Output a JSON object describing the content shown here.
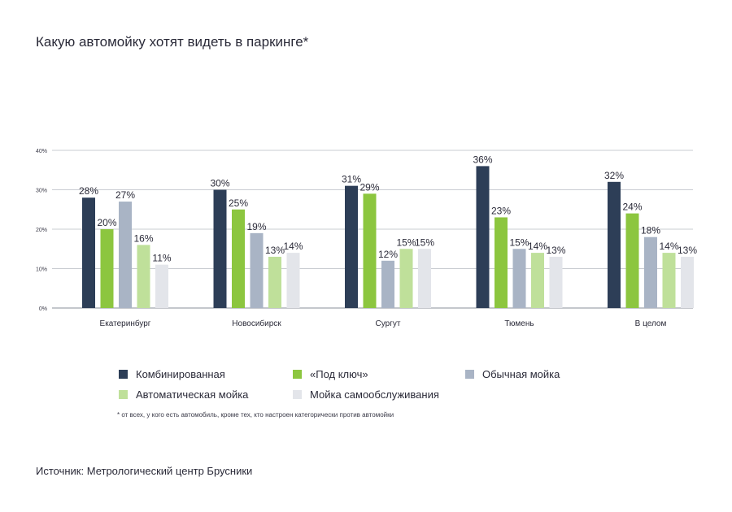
{
  "title": "Какую автомойку хотят видеть в паркинге*",
  "footnote": "* от всех, у кого есть автомобиль, кроме тех,  кто настроен категорически против автомойки",
  "source": "Источник: Метрологический центр Брусники",
  "chart_data": {
    "type": "bar",
    "categories": [
      "Екатеринбург",
      "Новосибирск",
      "Сургут",
      "Тюмень",
      "В целом"
    ],
    "series": [
      {
        "name": "Комбинированная",
        "color": "#2d3e57",
        "values": [
          28,
          30,
          31,
          36,
          32
        ],
        "labels": [
          "28%",
          "30%",
          "31%",
          "36%",
          "32%"
        ]
      },
      {
        "name": "«Под ключ»",
        "color": "#8cc63f",
        "values": [
          20,
          25,
          29,
          23,
          24
        ],
        "labels": [
          "20%",
          "25%",
          "29%",
          "23%",
          "24%"
        ]
      },
      {
        "name": "Обычная мойка",
        "color": "#a9b4c5",
        "values": [
          27,
          19,
          12,
          15,
          18
        ],
        "labels": [
          "27%",
          "19%",
          "12%",
          "15%",
          "18%"
        ]
      },
      {
        "name": "Автоматическая мойка",
        "color": "#bfe09a",
        "values": [
          16,
          13,
          15,
          14,
          14
        ],
        "labels": [
          "16%",
          "13%",
          "15%",
          "14%",
          "14%"
        ]
      },
      {
        "name": "Мойка самообслуживания",
        "color": "#e3e5ea",
        "values": [
          11,
          14,
          15,
          13,
          13
        ],
        "labels": [
          "11%",
          "14%",
          "15%",
          "13%",
          "13%"
        ]
      }
    ],
    "yticks": [
      "0%",
      "10%",
      "20%",
      "30%",
      "40%"
    ],
    "ylim": [
      0,
      40
    ],
    "grid": true,
    "legend_position": "bottom"
  }
}
